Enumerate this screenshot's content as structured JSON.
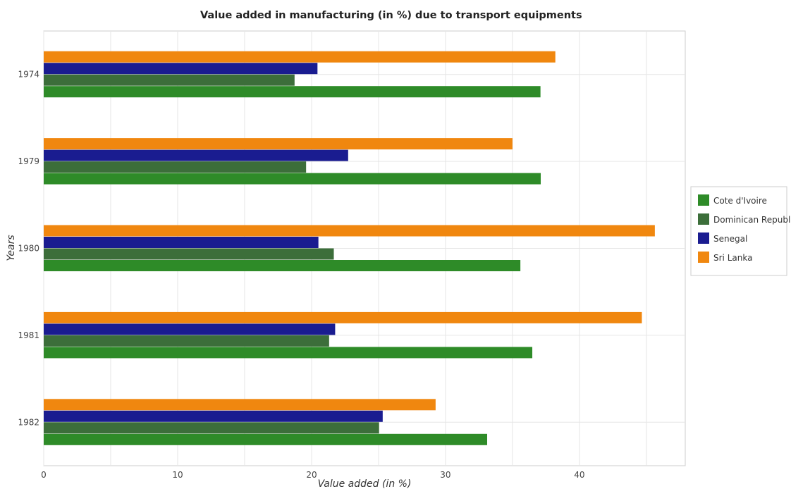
{
  "chart_data": {
    "type": "bar",
    "orientation": "horizontal",
    "title": "Value added in manufacturing (in %) due to transport equipments",
    "xlabel": "Value added (in %)",
    "ylabel": "Years",
    "categories": [
      "1974",
      "1979",
      "1980",
      "1981",
      "1982"
    ],
    "xlim": [
      0,
      47.9
    ],
    "xticks": [
      0,
      10,
      20,
      30,
      40
    ],
    "grid": true,
    "legend_position": "right",
    "series": [
      {
        "name": "Cote d'Ivoire",
        "color": "#2e8b28",
        "values": [
          37.09,
          37.11,
          35.59,
          36.48,
          33.11
        ]
      },
      {
        "name": "Dominican Republic",
        "color": "#3c6e3a",
        "values": [
          18.73,
          19.59,
          21.66,
          21.31,
          25.04
        ]
      },
      {
        "name": "Senegal",
        "color": "#1a1c90",
        "values": [
          20.44,
          22.73,
          20.51,
          21.76,
          25.31
        ]
      },
      {
        "name": "Sri Lanka",
        "color": "#f0870f",
        "values": [
          38.2,
          35.0,
          45.63,
          44.66,
          29.26
        ]
      }
    ]
  }
}
